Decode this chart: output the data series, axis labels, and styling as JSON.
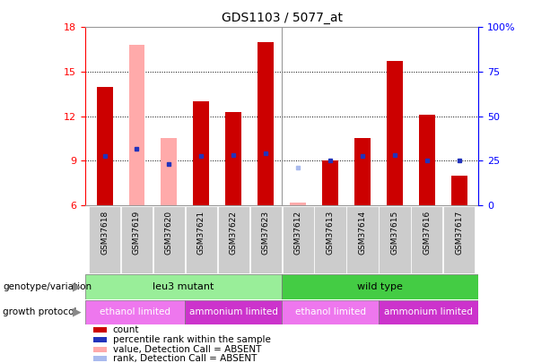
{
  "title": "GDS1103 / 5077_at",
  "samples": [
    "GSM37618",
    "GSM37619",
    "GSM37620",
    "GSM37621",
    "GSM37622",
    "GSM37623",
    "GSM37612",
    "GSM37613",
    "GSM37614",
    "GSM37615",
    "GSM37616",
    "GSM37617"
  ],
  "count_values": [
    14.0,
    null,
    null,
    13.0,
    12.3,
    17.0,
    null,
    9.0,
    10.5,
    15.7,
    12.1,
    8.0
  ],
  "count_absent": [
    null,
    16.8,
    10.5,
    null,
    null,
    null,
    6.2,
    null,
    null,
    null,
    null,
    null
  ],
  "rank_values": [
    9.3,
    9.8,
    8.8,
    9.3,
    9.4,
    9.5,
    null,
    9.0,
    9.3,
    9.4,
    9.0,
    9.0
  ],
  "rank_absent": [
    null,
    null,
    null,
    null,
    null,
    null,
    8.5,
    null,
    null,
    null,
    null,
    null
  ],
  "ylim": [
    6,
    18
  ],
  "yticks_left": [
    6,
    9,
    12,
    15,
    18
  ],
  "yticks_right": [
    0,
    25,
    50,
    75,
    100
  ],
  "bar_color_present": "#cc0000",
  "bar_color_absent": "#ffaaaa",
  "rank_color_present": "#2233bb",
  "rank_color_absent": "#aabbee",
  "bar_width": 0.5,
  "genotype_leu3": {
    "label": "leu3 mutant",
    "start": 0,
    "end": 6,
    "color": "#99ee99"
  },
  "genotype_wild": {
    "label": "wild type",
    "start": 6,
    "end": 12,
    "color": "#44cc44"
  },
  "protocol_ethanol_color": "#ee77ee",
  "protocol_ammonium_color": "#cc33cc",
  "protocol_ethanol_label": "ethanol limited",
  "protocol_ammonium_label": "ammonium limited",
  "legend_items": [
    {
      "label": "count",
      "color": "#cc0000"
    },
    {
      "label": "percentile rank within the sample",
      "color": "#2233bb"
    },
    {
      "label": "value, Detection Call = ABSENT",
      "color": "#ffaaaa"
    },
    {
      "label": "rank, Detection Call = ABSENT",
      "color": "#aabbee"
    }
  ],
  "background_color": "#ffffff",
  "xticklabel_bg": "#cccccc"
}
